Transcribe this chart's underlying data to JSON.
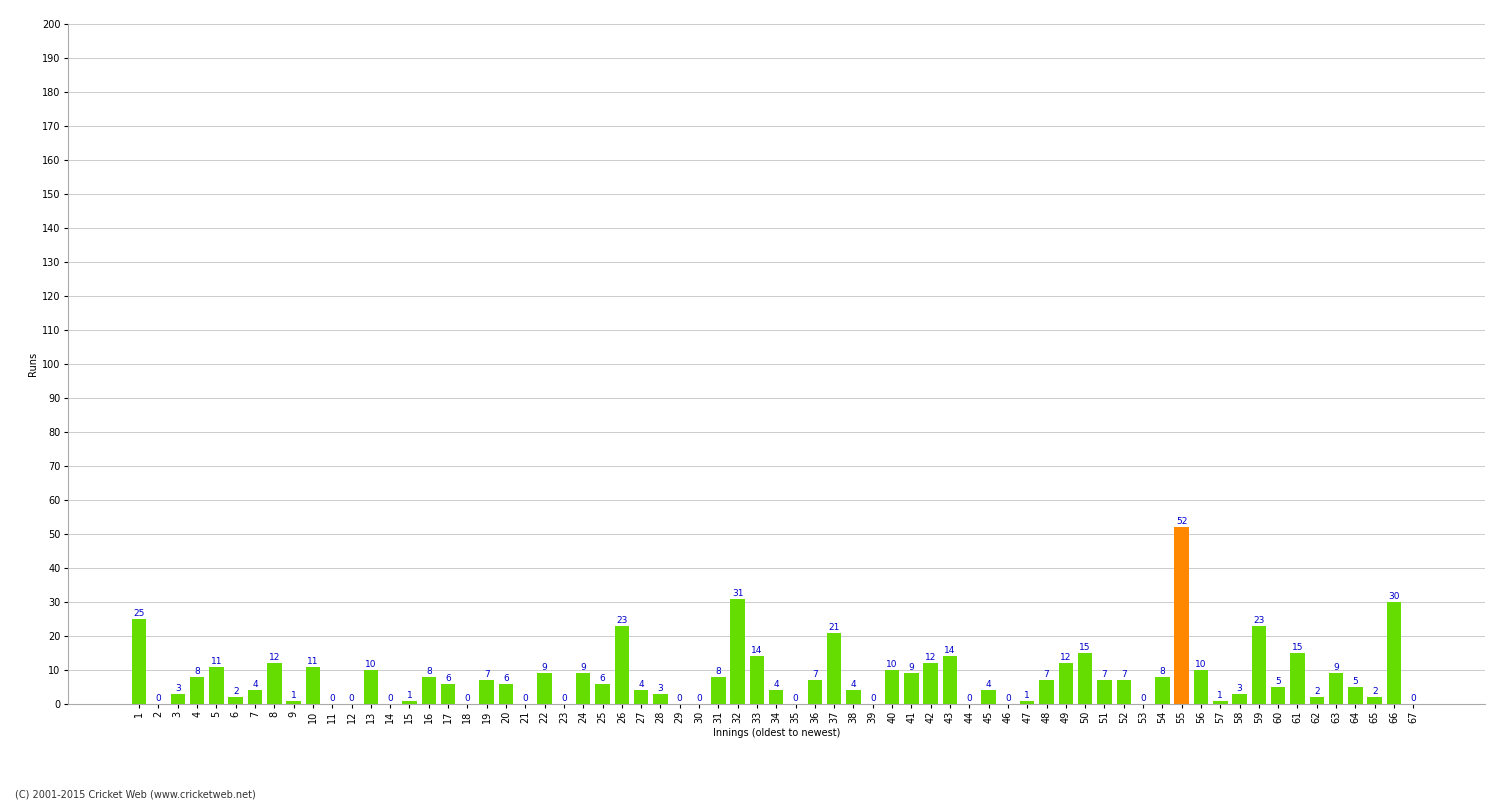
{
  "xlabel": "Innings (oldest to newest)",
  "ylabel": "Runs",
  "ylim": [
    0,
    200
  ],
  "yticks": [
    0,
    10,
    20,
    30,
    40,
    50,
    60,
    70,
    80,
    90,
    100,
    110,
    120,
    130,
    140,
    150,
    160,
    170,
    180,
    190,
    200
  ],
  "innings": [
    1,
    2,
    3,
    4,
    5,
    6,
    7,
    8,
    9,
    10,
    11,
    12,
    13,
    14,
    15,
    16,
    17,
    18,
    19,
    20,
    21,
    22,
    23,
    24,
    25,
    26,
    27,
    28,
    29,
    30,
    31,
    32,
    33,
    34,
    35,
    36,
    37,
    38,
    39,
    40,
    41,
    42,
    43,
    44,
    45,
    46,
    47,
    48,
    49,
    50,
    51,
    52,
    53,
    54,
    55,
    56,
    57,
    58,
    59,
    60,
    61,
    62,
    63,
    64,
    65,
    66,
    67
  ],
  "values": [
    25,
    0,
    3,
    8,
    11,
    2,
    4,
    12,
    1,
    11,
    0,
    0,
    10,
    0,
    1,
    8,
    6,
    0,
    7,
    6,
    0,
    9,
    0,
    9,
    6,
    23,
    4,
    3,
    0,
    0,
    8,
    31,
    14,
    4,
    0,
    7,
    21,
    4,
    0,
    10,
    9,
    12,
    14,
    0,
    4,
    0,
    1,
    7,
    12,
    15,
    7,
    7,
    0,
    8,
    52,
    10,
    1,
    3,
    23,
    5,
    15,
    2,
    9,
    5,
    2,
    30,
    0
  ],
  "orange_index": 54,
  "bar_color_green": "#66dd00",
  "bar_color_orange": "#ff8800",
  "label_color": "#0000cc",
  "bg_color": "#ffffff",
  "grid_color": "#cccccc",
  "title_fontsize": 9,
  "axis_label_fontsize": 7,
  "tick_fontsize": 7,
  "value_fontsize": 6.5,
  "footer": "(C) 2001-2015 Cricket Web (www.cricketweb.net)",
  "footer_fontsize": 7
}
